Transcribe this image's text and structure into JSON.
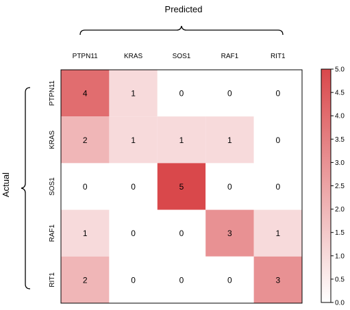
{
  "chart_data": {
    "type": "heatmap",
    "xlabel": "Predicted",
    "ylabel": "Actual",
    "x_categories": [
      "PTPN11",
      "KRAS",
      "SOS1",
      "RAF1",
      "RIT1"
    ],
    "y_categories": [
      "PTPN11",
      "KRAS",
      "SOS1",
      "RAF1",
      "RIT1"
    ],
    "values": [
      [
        4,
        1,
        0,
        0,
        0
      ],
      [
        2,
        1,
        1,
        1,
        0
      ],
      [
        0,
        0,
        5,
        0,
        0
      ],
      [
        1,
        0,
        0,
        3,
        1
      ],
      [
        2,
        0,
        0,
        0,
        3
      ]
    ],
    "colorbar": {
      "min": 0.0,
      "max": 5.0,
      "ticks": [
        "0.0",
        "0.5",
        "1.0",
        "1.5",
        "2.0",
        "2.5",
        "3.0",
        "3.5",
        "4.0",
        "4.5",
        "5.0"
      ],
      "color_low": "#ffffff",
      "color_high": "#d9484b"
    }
  }
}
